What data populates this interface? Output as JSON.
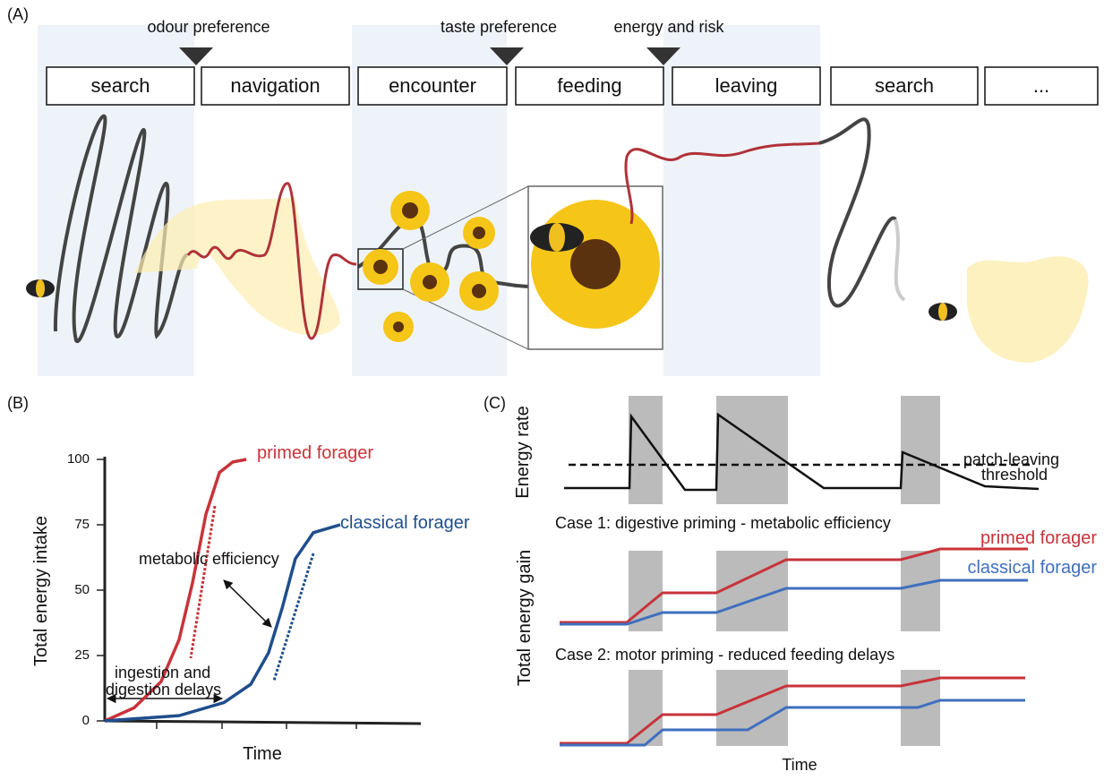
{
  "panel_a": {
    "label": "(A)",
    "markers": [
      "odour preference",
      "taste preference",
      "energy and risk"
    ],
    "stages": [
      "search",
      "navigation",
      "encounter",
      "feeding",
      "leaving",
      "search",
      "..."
    ]
  },
  "chart_data": [
    {
      "type": "line",
      "label": "(B)",
      "ylabel": "Total energy intake",
      "xlabel": "Time",
      "ylim": [
        0,
        100
      ],
      "yticks": [
        0,
        25,
        50,
        75,
        100
      ],
      "xlim": [
        0,
        100
      ],
      "series": [
        {
          "name": "primed forager",
          "color": "#c8333a",
          "x": [
            0,
            9.3,
            17.8,
            23.5,
            27.8,
            32,
            36.3,
            40.5,
            44.8
          ],
          "values": [
            0,
            5,
            15,
            31,
            53,
            79,
            95,
            99,
            100
          ]
        },
        {
          "name": "classical forager",
          "color": "#1f4e8c",
          "x": [
            0,
            23.5,
            37.7,
            46.2,
            51.8,
            56.1,
            60.3,
            66,
            74.5
          ],
          "values": [
            0,
            2,
            7,
            14,
            26,
            43,
            62,
            72,
            75
          ]
        }
      ],
      "annotations": [
        "metabolic efficiency",
        "ingestion and",
        "digestion delays"
      ]
    }
  ],
  "panel_c": {
    "label": "(C)",
    "top_ylabel": "Energy rate",
    "threshold": [
      "patch-leaving",
      "threshold"
    ],
    "cases": [
      "Case 1: digestive priming - metabolic efficiency",
      "Case 2: motor priming - reduced feeding delays"
    ],
    "legend": [
      "primed forager",
      "classical forager"
    ],
    "bottom_ylabel": "Total energy gain",
    "xlabel": "Time"
  }
}
